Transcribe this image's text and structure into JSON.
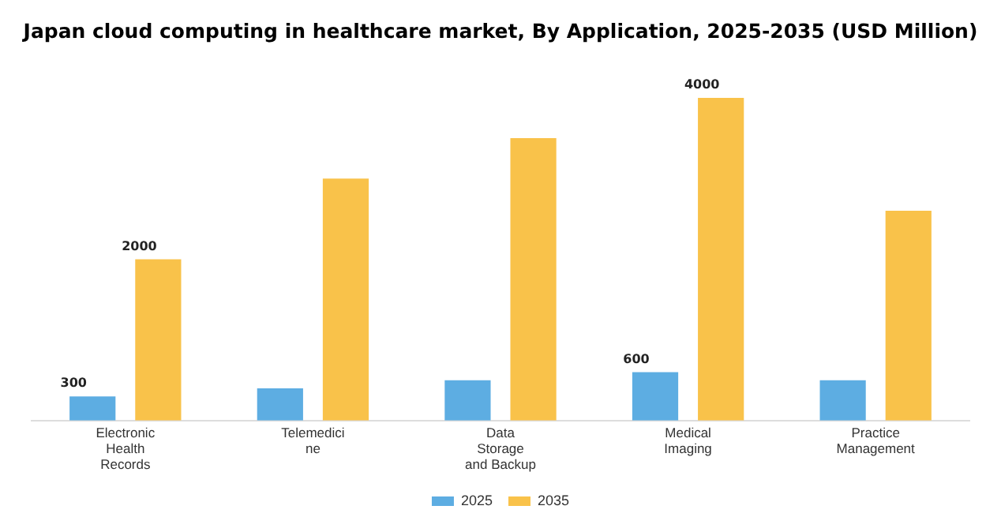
{
  "chart_data": {
    "type": "bar",
    "title": "Japan cloud computing in healthcare market, By Application, 2025-2035 (USD Million)",
    "categories": [
      "Electronic\nHealth\nRecords",
      "Telemedici\nne",
      "Data\nStorage\nand Backup",
      "Medical\nImaging",
      "Practice\nManagement"
    ],
    "series": [
      {
        "name": "2025",
        "color": "#5dade2",
        "values": [
          300,
          400,
          500,
          600,
          500
        ],
        "value_labels": [
          "300",
          null,
          null,
          "600",
          null
        ]
      },
      {
        "name": "2035",
        "color": "#f9c24a",
        "values": [
          2000,
          3000,
          3500,
          4000,
          2600
        ],
        "value_labels": [
          "2000",
          null,
          null,
          "4000",
          null
        ]
      }
    ],
    "grid": false,
    "legend": "bottom"
  }
}
